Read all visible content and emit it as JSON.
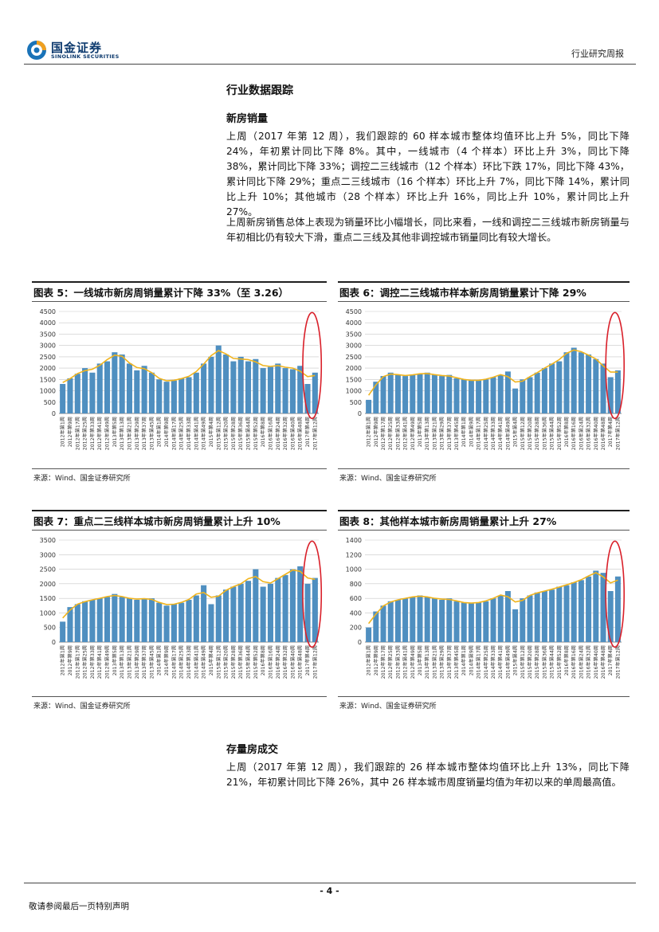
{
  "header": {
    "logo_cn": "国金证券",
    "logo_en": "SINOLINK SECURITIES",
    "report_type": "行业研究周报"
  },
  "section_title": "行业数据跟踪",
  "new_homes": {
    "heading": "新房销量",
    "para1": "上周（2017 年第 12 周），我们跟踪的 60 样本城市整体均值环比上升 5%，同比下降 24%，年初累计同比下降 8%。其中，一线城市（4 个样本）环比上升 3%，同比下降 38%，累计同比下降 33%；调控二三线城市（12 个样本）环比下跌 17%，同比下降 43%，累计同比下降 29%；重点二三线城市（16 个样本）环比上升 7%，同比下降 14%，累计同比上升 10%；其他城市（28 个样本）环比上升 16%，同比上升 10%，累计同比上升 27%。",
    "para2": "上周新房销售总体上表现为销量环比小幅增长，同比来看，一线和调控二三线城市新房销量与年初相比仍有较大下滑，重点二三线及其他非调控城市销量同比有较大增长。"
  },
  "figures": [
    {
      "title": "图表 5：一线城市新房周销量累计下降 33%（至 3.26）",
      "source": "来源：Wind、国金证券研究所"
    },
    {
      "title": "图表 6：调控二三线城市样本新房周销量累计下降 29%",
      "source": "来源：Wind、国金证券研究所"
    },
    {
      "title": "图表 7：重点二三线样本城市新房周销量累计上升 10%",
      "source": "来源：Wind、国金证券研究所"
    },
    {
      "title": "图表 8：其他样本城市新房周销量累计上升 27%",
      "source": "来源：Wind、国金证券研究所"
    }
  ],
  "chart_data": [
    {
      "type": "bar",
      "bar_color": "#4f8fc0",
      "line_color": "#f0b41e",
      "highlight_color": "#d9202a",
      "ylim": [
        0,
        4500
      ],
      "yticks": [
        "0",
        "500",
        "1000",
        "1500",
        "2000",
        "2500",
        "3000",
        "3500",
        "4000",
        "4500"
      ],
      "categories": [
        "2012年第1周",
        "2012年第9周",
        "2012年第17周",
        "2012年第25周",
        "2012年第33周",
        "2012年第41周",
        "2012年第49周",
        "2013年第5周",
        "2013年第13周",
        "2013年第21周",
        "2013年第29周",
        "2013年第37周",
        "2013年第45周",
        "2014年第1周",
        "2014年第9周",
        "2014年第17周",
        "2014年第25周",
        "2014年第33周",
        "2014年第41周",
        "2014年第49周",
        "2015年第4周",
        "2015年第12周",
        "2015年第20周",
        "2015年第28周",
        "2015年第36周",
        "2015年第44周",
        "2015年第52周",
        "2016年第8周",
        "2016年第16周",
        "2016年第24周",
        "2016年第32周",
        "2016年第40周",
        "2016年第48周",
        "2017年第4周",
        "2017年第12周"
      ],
      "values": [
        1300,
        1550,
        1750,
        2000,
        1800,
        2200,
        2300,
        2700,
        2600,
        2200,
        1900,
        2100,
        1800,
        1500,
        1400,
        1450,
        1550,
        1600,
        1800,
        2200,
        2500,
        3000,
        2600,
        2300,
        2500,
        2300,
        2400,
        2000,
        2050,
        2200,
        2000,
        1950,
        2100,
        1300,
        1800
      ]
    },
    {
      "type": "bar",
      "bar_color": "#4f8fc0",
      "line_color": "#f0b41e",
      "highlight_color": "#d9202a",
      "ylim": [
        0,
        4500
      ],
      "yticks": [
        "0",
        "500",
        "1000",
        "1500",
        "2000",
        "2500",
        "3000",
        "3500",
        "4000",
        "4500"
      ],
      "categories": [
        "2012年第1周",
        "2012年第9周",
        "2012年第17周",
        "2012年第25周",
        "2012年第33周",
        "2012年第41周",
        "2012年第49周",
        "2013年第5周",
        "2013年第13周",
        "2013年第21周",
        "2013年第29周",
        "2013年第37周",
        "2013年第45周",
        "2014年第1周",
        "2014年第9周",
        "2014年第17周",
        "2014年第25周",
        "2014年第33周",
        "2014年第41周",
        "2014年第49周",
        "2015年第4周",
        "2015年第12周",
        "2015年第20周",
        "2015年第28周",
        "2015年第36周",
        "2015年第44周",
        "2015年第52周",
        "2016年第8周",
        "2016年第16周",
        "2016年第24周",
        "2016年第32周",
        "2016年第40周",
        "2016年第48周",
        "2017年第4周",
        "2017年第12周"
      ],
      "values": [
        600,
        1400,
        1650,
        1800,
        1700,
        1650,
        1700,
        1750,
        1800,
        1700,
        1650,
        1700,
        1550,
        1500,
        1450,
        1450,
        1500,
        1600,
        1700,
        1850,
        1100,
        1500,
        1600,
        1800,
        2000,
        2200,
        2300,
        2700,
        2900,
        2700,
        2600,
        2400,
        2200,
        1600,
        1900
      ]
    },
    {
      "type": "bar",
      "bar_color": "#4f8fc0",
      "line_color": "#f0b41e",
      "highlight_color": "#d9202a",
      "ylim": [
        0,
        3500
      ],
      "yticks": [
        "0",
        "500",
        "1000",
        "1500",
        "2000",
        "2500",
        "3000",
        "3500"
      ],
      "categories": [
        "2012年第1周",
        "2012年第9周",
        "2012年第17周",
        "2012年第25周",
        "2012年第33周",
        "2012年第41周",
        "2012年第49周",
        "2013年第5周",
        "2013年第13周",
        "2013年第21周",
        "2013年第29周",
        "2013年第37周",
        "2013年第45周",
        "2014年第1周",
        "2014年第9周",
        "2014年第17周",
        "2014年第25周",
        "2014年第33周",
        "2014年第41周",
        "2014年第49周",
        "2015年第4周",
        "2015年第12周",
        "2015年第20周",
        "2015年第28周",
        "2015年第36周",
        "2015年第44周",
        "2015年第52周",
        "2016年第8周",
        "2016年第16周",
        "2016年第24周",
        "2016年第32周",
        "2016年第40周",
        "2016年第48周",
        "2017年第4周",
        "2017年第12周"
      ],
      "values": [
        700,
        1200,
        1300,
        1400,
        1450,
        1500,
        1550,
        1650,
        1550,
        1500,
        1450,
        1500,
        1500,
        1350,
        1250,
        1300,
        1350,
        1450,
        1600,
        1950,
        1300,
        1600,
        1800,
        1900,
        2000,
        2100,
        2500,
        1900,
        2000,
        2200,
        2300,
        2500,
        2600,
        2000,
        2200
      ]
    },
    {
      "type": "bar",
      "bar_color": "#4f8fc0",
      "line_color": "#f0b41e",
      "highlight_color": "#d9202a",
      "ylim": [
        0,
        1400
      ],
      "yticks": [
        "0",
        "200",
        "400",
        "600",
        "800",
        "1000",
        "1200",
        "1400"
      ],
      "categories": [
        "2012年第1周",
        "2012年第9周",
        "2012年第17周",
        "2012年第25周",
        "2012年第33周",
        "2012年第41周",
        "2012年第49周",
        "2013年第5周",
        "2013年第13周",
        "2013年第21周",
        "2013年第29周",
        "2013年第37周",
        "2013年第45周",
        "2014年第1周",
        "2014年第9周",
        "2014年第17周",
        "2014年第25周",
        "2014年第33周",
        "2014年第41周",
        "2014年第49周",
        "2015年第4周",
        "2015年第12周",
        "2015年第20周",
        "2015年第28周",
        "2015年第36周",
        "2015年第44周",
        "2015年第52周",
        "2016年第8周",
        "2016年第16周",
        "2016年第24周",
        "2016年第32周",
        "2016年第40周",
        "2016年第48周",
        "2017年第4周",
        "2017年第12周"
      ],
      "values": [
        200,
        420,
        500,
        560,
        580,
        600,
        620,
        640,
        620,
        600,
        580,
        600,
        560,
        540,
        530,
        540,
        560,
        600,
        640,
        700,
        450,
        600,
        640,
        680,
        700,
        720,
        760,
        780,
        820,
        850,
        900,
        980,
        950,
        700,
        900
      ]
    }
  ],
  "resale": {
    "heading": "存量房成交",
    "para": "上周（2017 年第 12 周），我们跟踪的 26 样本城市整体均值环比上升 13%，同比下降 21%，年初累计同比下降 26%，其中 26 样本城市周度销量均值为年初以来的单周最高值。"
  },
  "footer": {
    "page_number": "- 4 -",
    "disclaimer": "敬请参阅最后一页特别声明"
  }
}
